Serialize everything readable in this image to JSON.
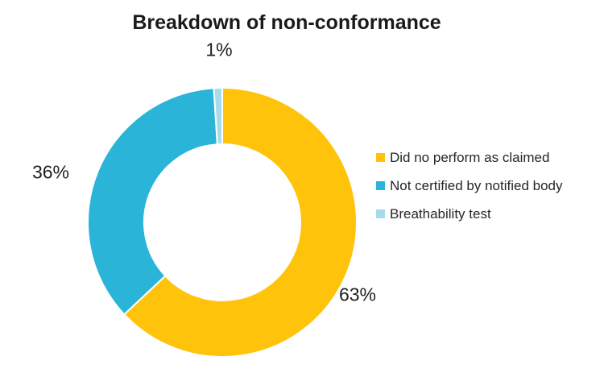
{
  "title": "Breakdown of non-conformance",
  "chart_data": {
    "type": "pie",
    "subtype": "donut",
    "title": "Breakdown of non-conformance",
    "legend_position": "right",
    "start_angle_deg": 0,
    "direction": "clockwise",
    "slices": [
      {
        "label": "Did no perform as claimed",
        "value": 63,
        "pct_label": "63%",
        "color": "#FFC30B"
      },
      {
        "label": "Not certified by notified body",
        "value": 36,
        "pct_label": "36%",
        "color": "#2AB4D8"
      },
      {
        "label": "Breathability test",
        "value": 1,
        "pct_label": "1%",
        "color": "#A5DBEA"
      }
    ]
  }
}
